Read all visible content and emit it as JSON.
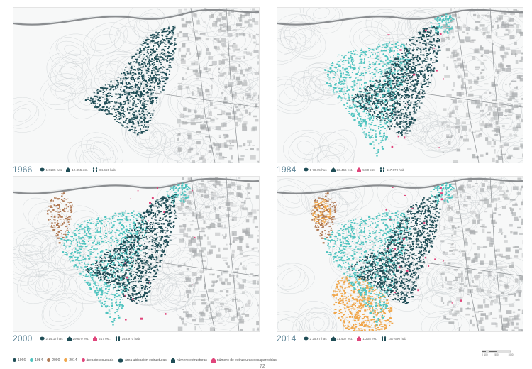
{
  "colors": {
    "c1966": "#1f4d56",
    "c1984": "#4fc3bf",
    "c2000": "#b07a55",
    "c2014": "#f0a64a",
    "vacant": "#e0457b",
    "topo": "#c9ced1",
    "urban": "#a9acae",
    "river": "#8a8d90"
  },
  "panels": [
    {
      "year": "1966",
      "stats": [
        {
          "icon": "area-icon",
          "value": "1 0195 has"
        },
        {
          "icon": "house-icon",
          "value": "12.855 est."
        },
        {
          "icon": "people-icon",
          "value": "64.655 hab"
        }
      ],
      "layers": [
        "1966"
      ]
    },
    {
      "year": "1984",
      "stats": [
        {
          "icon": "area-icon",
          "value": "1 78.75 has"
        },
        {
          "icon": "house-icon",
          "value": "23.456 est."
        },
        {
          "icon": "vacant-house-icon",
          "value": "5.80 est."
        },
        {
          "icon": "people-icon",
          "value": "117.670 hab"
        }
      ],
      "layers": [
        "1966",
        "1984",
        "vacant"
      ]
    },
    {
      "year": "2000",
      "stats": [
        {
          "icon": "area-icon",
          "value": "2 14.17 has"
        },
        {
          "icon": "house-icon",
          "value": "29.670 est."
        },
        {
          "icon": "vacant-house-icon",
          "value": "217 est."
        },
        {
          "icon": "people-icon",
          "value": "148.970 hab"
        }
      ],
      "layers": [
        "1966",
        "1984",
        "2000",
        "vacant"
      ]
    },
    {
      "year": "2014",
      "stats": [
        {
          "icon": "area-icon",
          "value": "2 25.67 has"
        },
        {
          "icon": "house-icon",
          "value": "31.407 est."
        },
        {
          "icon": "vacant-house-icon",
          "value": "1.208 est."
        },
        {
          "icon": "people-icon",
          "value": "157.690 hab"
        }
      ],
      "layers": [
        "1966",
        "1984",
        "2000",
        "2014",
        "vacant"
      ]
    }
  ],
  "legend": {
    "items": [
      {
        "kind": "dot",
        "color": "#1f4d56",
        "label": "1966"
      },
      {
        "kind": "dot",
        "color": "#4fc3bf",
        "label": "1984"
      },
      {
        "kind": "dot",
        "color": "#b07a55",
        "label": "2000"
      },
      {
        "kind": "dot",
        "color": "#f0a64a",
        "label": "2014"
      },
      {
        "kind": "dot",
        "color": "#e0457b",
        "label": "área desocupada"
      },
      {
        "kind": "area",
        "color": "#1f4d56",
        "label": "área ubicación estructuras"
      },
      {
        "kind": "house",
        "color": "#1f4d56",
        "label": "número estructuras"
      },
      {
        "kind": "house",
        "color": "#e0457b",
        "label": "número de estructuras desaparecidas"
      }
    ]
  },
  "scale": {
    "labels": [
      "0",
      "100",
      "500",
      "1000"
    ]
  },
  "page_number": "72"
}
